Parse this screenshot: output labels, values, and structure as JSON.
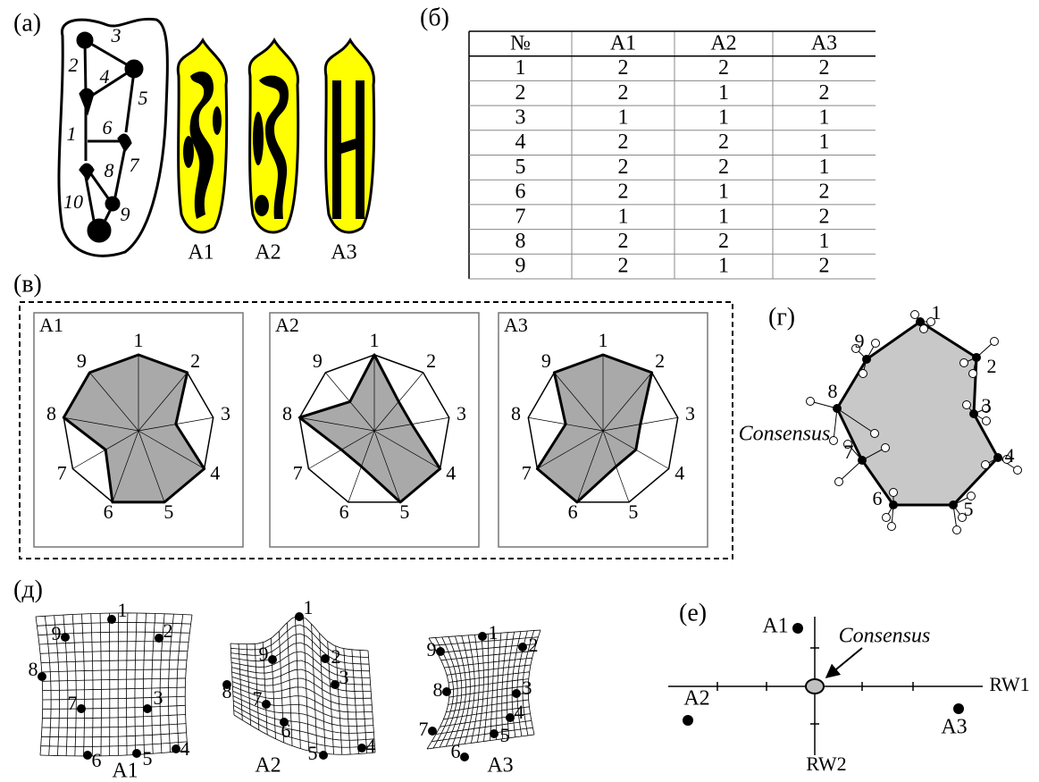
{
  "panel_labels": [
    "(а)",
    "(б)",
    "(в)",
    "(г)",
    "(д)",
    "(е)"
  ],
  "seed": {
    "edge_labels": [
      "1",
      "2",
      "3",
      "4",
      "5",
      "6",
      "7",
      "8",
      "9",
      "10"
    ],
    "morph_labels": [
      "A1",
      "A2",
      "A3"
    ]
  },
  "table": {
    "header": [
      "№",
      "A1",
      "A2",
      "A3"
    ],
    "rows": [
      [
        1,
        2,
        2,
        2
      ],
      [
        2,
        2,
        1,
        2
      ],
      [
        3,
        1,
        1,
        1
      ],
      [
        4,
        2,
        2,
        1
      ],
      [
        5,
        2,
        2,
        1
      ],
      [
        6,
        2,
        1,
        2
      ],
      [
        7,
        1,
        1,
        2
      ],
      [
        8,
        2,
        2,
        1
      ],
      [
        9,
        2,
        1,
        2
      ]
    ]
  },
  "radar": {
    "panels": [
      {
        "title": "A1",
        "axis_labels": [
          "1",
          "2",
          "3",
          "4",
          "5",
          "6",
          "7",
          "8",
          "9"
        ]
      },
      {
        "title": "A2",
        "axis_labels": [
          "1",
          "2",
          "3",
          "4",
          "5",
          "6",
          "7",
          "8",
          "9"
        ]
      },
      {
        "title": "A3",
        "axis_labels": [
          "1",
          "2",
          "3",
          "4",
          "5",
          "6",
          "7",
          "8",
          "9"
        ]
      }
    ]
  },
  "consensus": {
    "label": "Consensus",
    "landmark_labels": [
      "1",
      "2",
      "3",
      "4",
      "5",
      "6",
      "7",
      "8",
      "9"
    ]
  },
  "grids": {
    "panels": [
      {
        "title": "A1",
        "landmark_labels": [
          "1",
          "2",
          "3",
          "4",
          "5",
          "6",
          "7",
          "8",
          "9"
        ]
      },
      {
        "title": "A2",
        "landmark_labels": [
          "1",
          "2",
          "3",
          "4",
          "5",
          "6",
          "7",
          "8",
          "9"
        ]
      },
      {
        "title": "A3",
        "landmark_labels": [
          "1",
          "2",
          "3",
          "4",
          "5",
          "6",
          "7",
          "8",
          "9"
        ]
      }
    ]
  },
  "ordination": {
    "axis_labels": [
      "RW1",
      "RW2"
    ],
    "point_labels": [
      "A1",
      "A2",
      "A3"
    ],
    "consensus_label": "Consensus"
  }
}
